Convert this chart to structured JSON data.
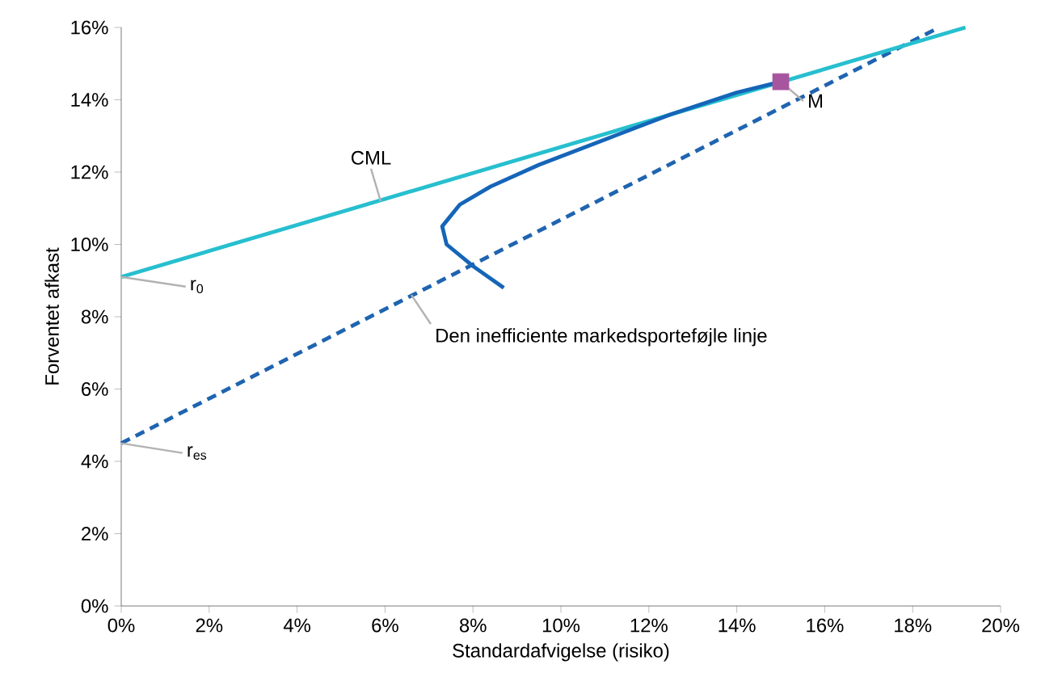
{
  "chart_data": {
    "type": "line",
    "xlabel": "Standardafvigelse (risiko)",
    "ylabel": "Forventet afkast",
    "xlim": [
      0,
      20
    ],
    "ylim": [
      0,
      16
    ],
    "xticks": [
      {
        "value": 0,
        "label": "0%"
      },
      {
        "value": 2,
        "label": "2%"
      },
      {
        "value": 4,
        "label": "4%"
      },
      {
        "value": 6,
        "label": "6%"
      },
      {
        "value": 8,
        "label": "8%"
      },
      {
        "value": 10,
        "label": "10%"
      },
      {
        "value": 12,
        "label": "12%"
      },
      {
        "value": 14,
        "label": "14%"
      },
      {
        "value": 16,
        "label": "16%"
      },
      {
        "value": 18,
        "label": "18%"
      },
      {
        "value": 20,
        "label": "20%"
      }
    ],
    "yticks": [
      {
        "value": 0,
        "label": "0%"
      },
      {
        "value": 2,
        "label": "2%"
      },
      {
        "value": 4,
        "label": "4%"
      },
      {
        "value": 6,
        "label": "6%"
      },
      {
        "value": 8,
        "label": "8%"
      },
      {
        "value": 10,
        "label": "10%"
      },
      {
        "value": 12,
        "label": "12%"
      },
      {
        "value": 14,
        "label": "14%"
      },
      {
        "value": 16,
        "label": "16%"
      }
    ],
    "grid": false,
    "series": [
      {
        "color": "#1f64b0",
        "line_style": "dashed",
        "marker": "none",
        "x": [
          0,
          18.6
        ],
        "values": [
          4.5,
          16.0
        ]
      },
      {
        "color": "#27bfcf",
        "line_style": "solid",
        "marker": "none",
        "x": [
          0,
          19.2
        ],
        "values": [
          9.1,
          16.0
        ]
      },
      {
        "color": "#1565b8",
        "line_style": "solid",
        "marker": "none",
        "x": [
          8.7,
          8.0,
          7.4,
          7.3,
          7.7,
          8.4,
          9.5,
          11.0,
          12.5,
          14.0,
          15.0
        ],
        "values": [
          8.8,
          9.4,
          10.0,
          10.5,
          11.1,
          11.6,
          12.2,
          12.9,
          13.6,
          14.2,
          14.5
        ]
      },
      {
        "type": "scatter",
        "color": "#a855a0",
        "marker": "square",
        "x": [
          15.0
        ],
        "values": [
          14.5
        ]
      }
    ],
    "annotations": [
      {
        "text": "CML",
        "x": 5.9,
        "y": 11.2
      },
      {
        "text": "M",
        "x": 15.0,
        "y": 14.5
      },
      {
        "text": "r$_{0}$",
        "x": 0,
        "y": 9.1
      },
      {
        "text": "r$_{es}$",
        "x": 0,
        "y": 4.5
      },
      {
        "text": "Den inefficiente markedsporteføjle linje",
        "x": 6.6,
        "y": 8.6
      }
    ]
  }
}
